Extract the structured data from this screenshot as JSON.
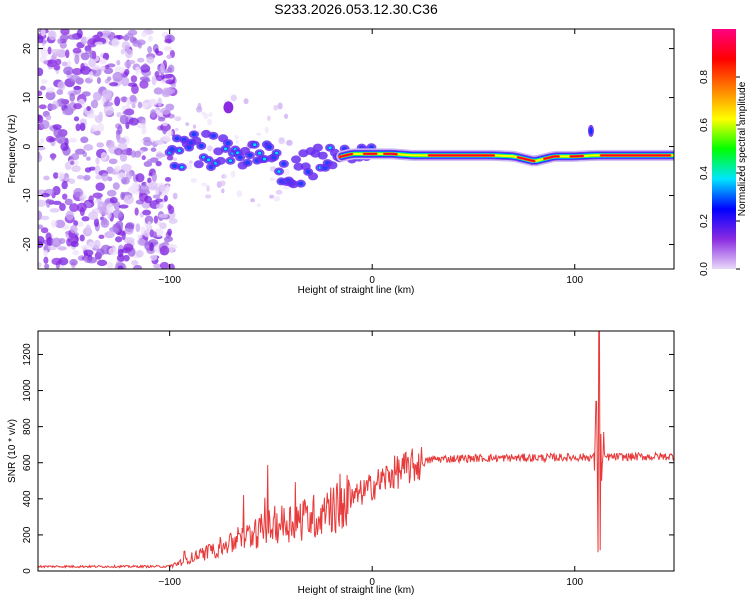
{
  "figure_title": "S233.2026.053.12.30.C36",
  "chart_data": [
    {
      "type": "heatmap",
      "title": "S233.2026.053.12.30.C36",
      "xlabel": "Height of straight line (km)",
      "ylabel": "Frequency (Hz)",
      "xlim": [
        -165,
        149
      ],
      "ylim": [
        -25,
        24
      ],
      "xticks": [
        -100,
        0,
        100
      ],
      "yticks": [
        -20,
        -10,
        0,
        10,
        20
      ],
      "colorbar": {
        "label": "Normalized spectral amplitude",
        "range": [
          0.0,
          1.0
        ],
        "ticks": [
          0.0,
          0.2,
          0.4,
          0.6,
          0.8
        ],
        "tick_labels": [
          "0.0",
          "0.2",
          "0.4",
          "0.6",
          "0.8"
        ],
        "colors": [
          "#e8d8f8",
          "#8a2be2",
          "#0000ff",
          "#00e5ff",
          "#00ff00",
          "#ffff00",
          "#ff8000",
          "#ff0000",
          "#ff0080"
        ]
      },
      "ridge": {
        "x": [
          -100,
          -90,
          -80,
          -70,
          -60,
          -50,
          -40,
          -30,
          -20,
          -10,
          0,
          10,
          20,
          40,
          60,
          70,
          80,
          90,
          100,
          110,
          149
        ],
        "frequency": [
          -1.5,
          -0.5,
          -1,
          -2,
          -2,
          -3,
          -5,
          -4,
          -2.5,
          -1.5,
          -1.5,
          -1.5,
          -1.8,
          -1.8,
          -1.8,
          -2,
          -3,
          -2,
          -2,
          -1.8,
          -1.8
        ]
      }
    },
    {
      "type": "line",
      "xlabel": "Height of straight line (km)",
      "ylabel": "SNR (10 * v/v)",
      "xlim": [
        -165,
        149
      ],
      "ylim": [
        0,
        1330
      ],
      "xticks": [
        -100,
        0,
        100
      ],
      "yticks": [
        0,
        200,
        400,
        600,
        800,
        1000,
        1200
      ],
      "color": "#e83a3a",
      "trend": {
        "x": [
          -165,
          -100,
          -90,
          -70,
          -50,
          -30,
          -20,
          -10,
          0,
          10,
          20,
          30,
          50,
          100,
          149
        ],
        "y": [
          25,
          25,
          70,
          150,
          250,
          300,
          330,
          400,
          470,
          540,
          580,
          620,
          625,
          630,
          635
        ]
      },
      "spike": {
        "x": 112,
        "max": 1330,
        "min": 95
      }
    }
  ]
}
